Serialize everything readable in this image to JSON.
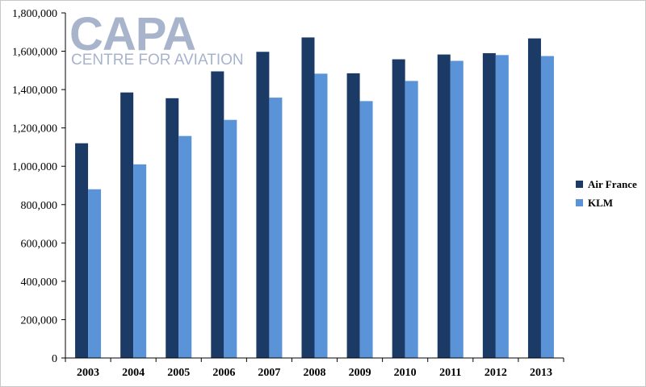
{
  "logo": {
    "name": "CAPA",
    "tagline": "CENTRE FOR AVIATION"
  },
  "colors": {
    "air_france": "#1b3a66",
    "klm": "#5b93d9",
    "axis": "#000000",
    "logo": "#a7b4cc"
  },
  "chart_data": {
    "type": "bar",
    "categories": [
      "2003",
      "2004",
      "2005",
      "2006",
      "2007",
      "2008",
      "2009",
      "2010",
      "2011",
      "2012",
      "2013"
    ],
    "series": [
      {
        "name": "Air France",
        "values": [
          1120000,
          1385000,
          1355000,
          1495000,
          1597000,
          1672000,
          1485000,
          1558000,
          1583000,
          1590000,
          1667000
        ]
      },
      {
        "name": "KLM",
        "values": [
          880000,
          1010000,
          1158000,
          1242000,
          1358000,
          1483000,
          1340000,
          1445000,
          1550000,
          1580000,
          1575000
        ]
      }
    ],
    "ylim": [
      0,
      1800000
    ],
    "yticks": [
      "0",
      "200,000",
      "400,000",
      "600,000",
      "800,000",
      "1,000,000",
      "1,200,000",
      "1,400,000",
      "1,600,000",
      "1,800,000"
    ],
    "grid": false,
    "legend": "right"
  }
}
